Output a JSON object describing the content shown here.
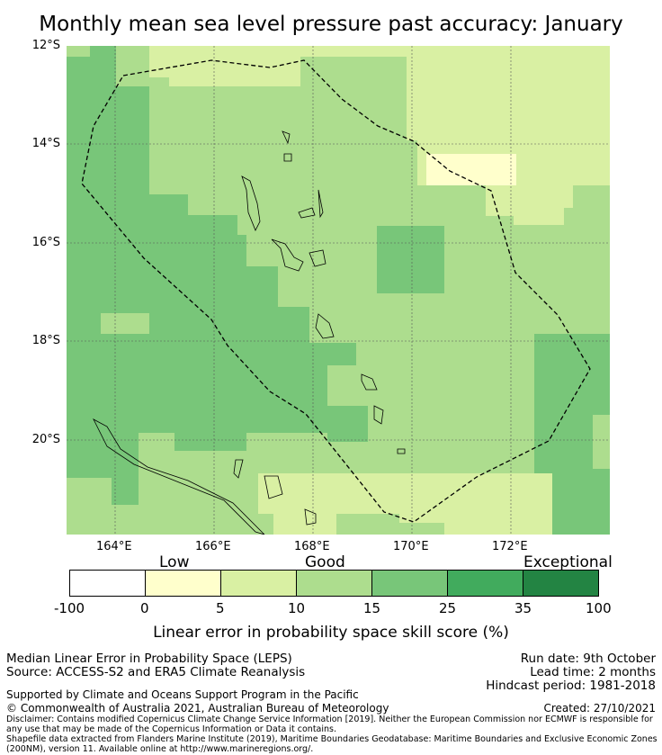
{
  "title": "Monthly mean sea level pressure past accuracy: January",
  "lat_labels": [
    "12°S",
    "14°S",
    "16°S",
    "18°S",
    "20°S"
  ],
  "lon_labels": [
    "164°E",
    "166°E",
    "168°E",
    "170°E",
    "172°E"
  ],
  "legend": {
    "categories": [
      "Low",
      "Good",
      "Exceptional"
    ],
    "ticks": [
      "-100",
      "0",
      "5",
      "10",
      "15",
      "25",
      "35",
      "100"
    ],
    "colors": [
      "#ffffff",
      "#ffffcc",
      "#d9f0a3",
      "#addd8e",
      "#78c679",
      "#41ab5d",
      "#238443"
    ],
    "label": "Linear error in probability space skill score (%)"
  },
  "footer": {
    "left1": "Median Linear Error in Probability Space (LEPS)",
    "left2": "Source: ACCESS-S2 and ERA5 Climate Reanalysis",
    "support": "Supported by Climate and Oceans Support Program in the Pacific",
    "copyright": "© Commonwealth of Australia 2021, Australian Bureau of Meteorology",
    "run_date": "Run date: 9th October",
    "lead_time": "Lead time: 2 months",
    "hindcast": "Hindcast period: 1981-2018",
    "created": "Created: 27/10/2021",
    "disclaimer": "Disclaimer: Contains modified Copernicus Climate Change Service Information [2019]. Neither the European Commission nor ECMWF is responsible for any use that may be made of the Copernicus Information or Data it contains.",
    "shapefile": "Shapefile data extracted from Flanders Marine Institute (2019), Maritime Boundaries Geodatabase: Maritime Boundaries and Exclusive Economic Zones (200NM), version 11. Available online at http://www.marineregions.org/."
  }
}
